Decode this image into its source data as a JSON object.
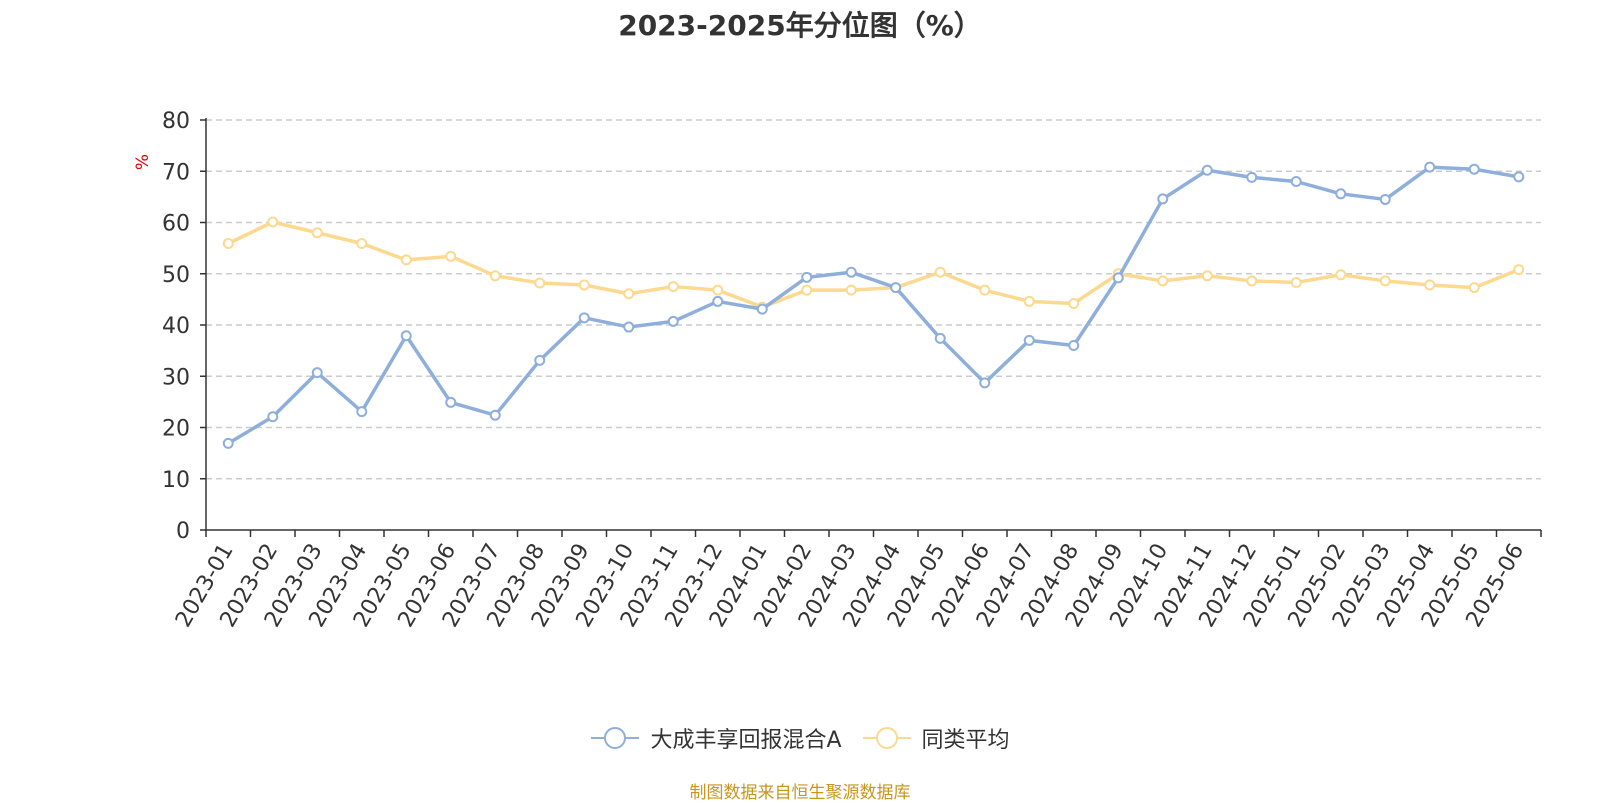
{
  "title": "2023-2025年分位图（%）",
  "source_note": "制图数据来自恒生聚源数据库",
  "colors": {
    "series_a": "#8eaedb",
    "series_b": "#fcd98f",
    "unit_label": "#e00000",
    "grid": "#cccccc",
    "axis": "#333333"
  },
  "chart_data": {
    "type": "line",
    "title": "2023-2025年分位图（%）",
    "ylabel": "%",
    "ylim": [
      0,
      80
    ],
    "yticks": [
      0,
      10,
      20,
      30,
      40,
      50,
      60,
      70,
      80
    ],
    "grid": true,
    "legend_position": "bottom",
    "x": [
      "2023-01",
      "2023-02",
      "2023-03",
      "2023-04",
      "2023-05",
      "2023-06",
      "2023-07",
      "2023-08",
      "2023-09",
      "2023-10",
      "2023-11",
      "2023-12",
      "2024-01",
      "2024-02",
      "2024-03",
      "2024-04",
      "2024-05",
      "2024-06",
      "2024-07",
      "2024-08",
      "2024-09",
      "2024-10",
      "2024-11",
      "2024-12",
      "2025-01",
      "2025-02",
      "2025-03",
      "2025-04",
      "2025-05",
      "2025-06"
    ],
    "series": [
      {
        "name": "大成丰享回报混合A",
        "color": "#8eaedb",
        "values": [
          16.9,
          22.1,
          30.7,
          23.1,
          37.9,
          24.9,
          22.4,
          33.1,
          41.4,
          39.6,
          40.7,
          44.6,
          43.1,
          49.3,
          50.3,
          47.3,
          37.4,
          28.7,
          37.0,
          36.0,
          49.2,
          64.6,
          70.2,
          68.8,
          68.0,
          65.6,
          64.5,
          70.8,
          70.4,
          68.9
        ]
      },
      {
        "name": "同类平均",
        "color": "#fcd98f",
        "values": [
          55.9,
          60.1,
          58.0,
          55.9,
          52.7,
          53.4,
          49.6,
          48.2,
          47.8,
          46.1,
          47.5,
          46.8,
          43.5,
          46.8,
          46.8,
          47.3,
          50.3,
          46.8,
          44.6,
          44.2,
          50.0,
          48.6,
          49.6,
          48.6,
          48.3,
          49.8,
          48.6,
          47.8,
          47.3,
          50.8
        ]
      }
    ]
  }
}
